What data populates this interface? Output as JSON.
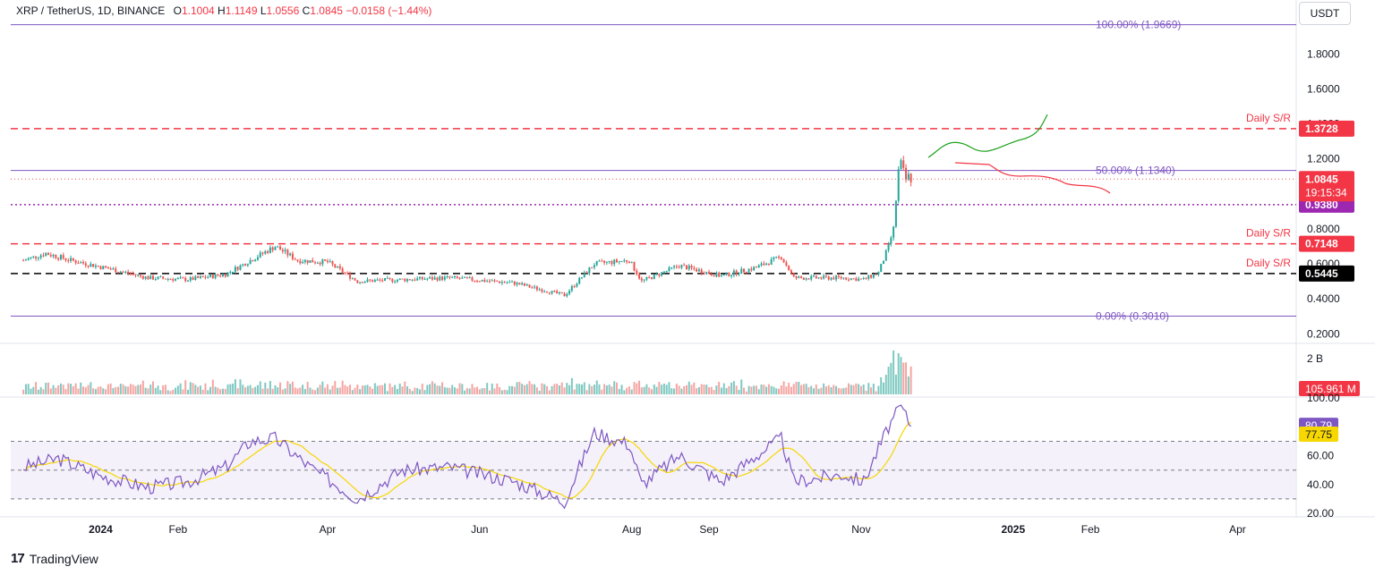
{
  "header": {
    "symbol": "XRP / TetherUS, 1D, BINANCE",
    "open_label": "O",
    "open": "1.1004",
    "high_label": "H",
    "high": "1.1149",
    "low_label": "L",
    "low": "1.0556",
    "close_label": "C",
    "close": "1.0845",
    "change": "−0.0158 (−1.44%)"
  },
  "currency": "USDT",
  "brand": "TradingView",
  "colors": {
    "up": "#26a69a",
    "down": "#ef5350",
    "sr": "#f23645",
    "fib": "#7e57c2",
    "rsi": "#7e57c2",
    "rsi_ma": "#f7d700",
    "projection_up": "#1aa11a"
  },
  "chart_data": [
    {
      "type": "candlestick",
      "title": "XRP / TetherUS, 1D, BINANCE",
      "y_axis_ticks": [
        "1.8000",
        "1.6000",
        "1.4000",
        "1.2000",
        "0.8000",
        "0.6000",
        "0.4000",
        "0.2000"
      ],
      "x_axis_ticks": [
        "2024",
        "Feb",
        "Apr",
        "Jun",
        "Aug",
        "Sep",
        "Nov",
        "2025",
        "Feb",
        "Apr"
      ],
      "ylim": [
        0.12,
        2.0
      ],
      "price_path": [
        {
          "date": "2023-12-01",
          "price": 0.62
        },
        {
          "date": "2023-12-10",
          "price": 0.66
        },
        {
          "date": "2023-12-20",
          "price": 0.62
        },
        {
          "date": "2024-01-05",
          "price": 0.57
        },
        {
          "date": "2024-01-20",
          "price": 0.52
        },
        {
          "date": "2024-02-05",
          "price": 0.51
        },
        {
          "date": "2024-02-20",
          "price": 0.54
        },
        {
          "date": "2024-03-01",
          "price": 0.62
        },
        {
          "date": "2024-03-11",
          "price": 0.7
        },
        {
          "date": "2024-03-20",
          "price": 0.62
        },
        {
          "date": "2024-04-01",
          "price": 0.61
        },
        {
          "date": "2024-04-13",
          "price": 0.5
        },
        {
          "date": "2024-05-01",
          "price": 0.51
        },
        {
          "date": "2024-05-20",
          "price": 0.52
        },
        {
          "date": "2024-06-15",
          "price": 0.49
        },
        {
          "date": "2024-07-05",
          "price": 0.42
        },
        {
          "date": "2024-07-17",
          "price": 0.6
        },
        {
          "date": "2024-07-31",
          "price": 0.62
        },
        {
          "date": "2024-08-05",
          "price": 0.5
        },
        {
          "date": "2024-08-20",
          "price": 0.59
        },
        {
          "date": "2024-09-06",
          "price": 0.53
        },
        {
          "date": "2024-09-20",
          "price": 0.58
        },
        {
          "date": "2024-09-30",
          "price": 0.64
        },
        {
          "date": "2024-10-05",
          "price": 0.52
        },
        {
          "date": "2024-10-25",
          "price": 0.52
        },
        {
          "date": "2024-11-02",
          "price": 0.51
        },
        {
          "date": "2024-11-08",
          "price": 0.55
        },
        {
          "date": "2024-11-12",
          "price": 0.7
        },
        {
          "date": "2024-11-14",
          "price": 0.8
        },
        {
          "date": "2024-11-16",
          "price": 1.13
        },
        {
          "date": "2024-11-17",
          "price": 1.17
        },
        {
          "date": "2024-11-19",
          "price": 1.08
        },
        {
          "date": "2024-11-20",
          "price": 1.1
        },
        {
          "date": "2024-11-21",
          "price": 1.0845
        }
      ],
      "horizontal_levels": [
        {
          "label": "100.00% (1.9669)",
          "value": 1.9669,
          "style": "fib"
        },
        {
          "label": "Daily S/R",
          "badge": "1.3728",
          "value": 1.3728,
          "style": "sr"
        },
        {
          "label": "50.00% (1.1340)",
          "value": 1.134,
          "style": "fib"
        },
        {
          "badge": "0.9380",
          "value": 0.938,
          "style": "dotted"
        },
        {
          "label": "Daily S/R",
          "badge": "0.7148",
          "value": 0.7148,
          "style": "sr"
        },
        {
          "label": "Daily S/R",
          "badge": "0.5445",
          "value": 0.5445,
          "style": "support"
        },
        {
          "label": "0.00% (0.3010)",
          "value": 0.301,
          "style": "fib"
        }
      ],
      "last_price_badge": {
        "price": "1.0845",
        "countdown": "19:15:34"
      }
    },
    {
      "type": "bar",
      "title": "Volume",
      "y_axis_ticks": [
        "2 B"
      ],
      "last_value_badge": "105.961 M"
    },
    {
      "type": "line",
      "title": "RSI",
      "y_axis_ticks": [
        "100.00",
        "60.00",
        "40.00",
        "20.00"
      ],
      "ylim": [
        18,
        102
      ],
      "band": [
        30,
        70
      ],
      "badges": [
        {
          "series": "RSI",
          "value": "80.79"
        },
        {
          "series": "RSI MA",
          "value": "77.75"
        }
      ],
      "rsi_path": [
        {
          "date": "2023-12-01",
          "value": 52
        },
        {
          "date": "2023-12-15",
          "value": 58
        },
        {
          "date": "2024-01-01",
          "value": 46
        },
        {
          "date": "2024-01-20",
          "value": 38
        },
        {
          "date": "2024-02-05",
          "value": 42
        },
        {
          "date": "2024-02-20",
          "value": 52
        },
        {
          "date": "2024-03-01",
          "value": 70
        },
        {
          "date": "2024-03-11",
          "value": 72
        },
        {
          "date": "2024-03-25",
          "value": 52
        },
        {
          "date": "2024-04-13",
          "value": 30
        },
        {
          "date": "2024-05-01",
          "value": 50
        },
        {
          "date": "2024-05-20",
          "value": 52
        },
        {
          "date": "2024-06-15",
          "value": 42
        },
        {
          "date": "2024-07-05",
          "value": 28
        },
        {
          "date": "2024-07-17",
          "value": 76
        },
        {
          "date": "2024-07-31",
          "value": 68
        },
        {
          "date": "2024-08-05",
          "value": 40
        },
        {
          "date": "2024-08-20",
          "value": 60
        },
        {
          "date": "2024-09-06",
          "value": 42
        },
        {
          "date": "2024-09-20",
          "value": 60
        },
        {
          "date": "2024-09-30",
          "value": 72
        },
        {
          "date": "2024-10-05",
          "value": 42
        },
        {
          "date": "2024-10-25",
          "value": 47
        },
        {
          "date": "2024-11-02",
          "value": 42
        },
        {
          "date": "2024-11-12",
          "value": 80
        },
        {
          "date": "2024-11-17",
          "value": 94
        },
        {
          "date": "2024-11-21",
          "value": 80.79
        }
      ]
    }
  ]
}
